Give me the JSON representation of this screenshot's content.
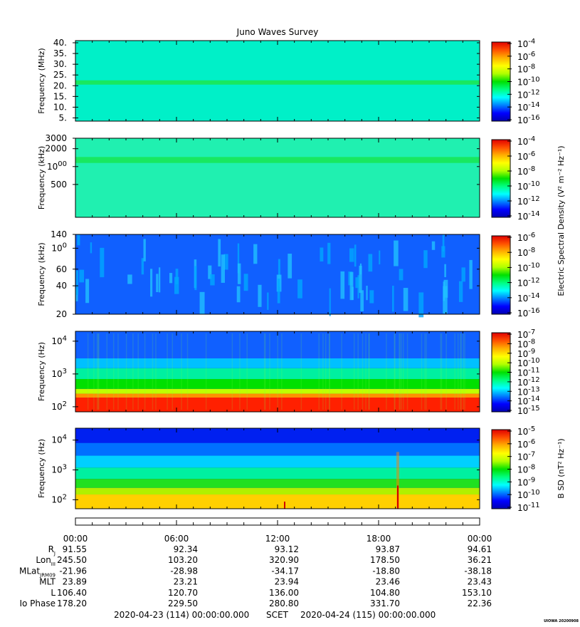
{
  "title": "Juno Waves Survey",
  "footer": {
    "start": "2020-04-23 (114) 00:00:00.000",
    "scet": "SCET",
    "end": "2020-04-24 (115) 00:00:00.000",
    "stamp": "UIOWA 20200908"
  },
  "time_ticks": [
    "00:00",
    "06:00",
    "12:00",
    "18:00",
    "00:00"
  ],
  "ephemeris": [
    {
      "label": "R",
      "sub": "J",
      "values": [
        "91.55",
        "92.34",
        "93.12",
        "93.87",
        "94.61"
      ]
    },
    {
      "label": "Lon",
      "sub": "III",
      "values": [
        "245.50",
        "103.20",
        "320.90",
        "178.50",
        "36.21"
      ]
    },
    {
      "label": "MLat",
      "sub": "JRM09",
      "values": [
        "-21.96",
        "-28.98",
        "-34.17",
        "-18.80",
        "-38.18"
      ]
    },
    {
      "label": "MLT",
      "sub": "",
      "values": [
        "23.89",
        "23.21",
        "23.94",
        "23.46",
        "23.43"
      ]
    },
    {
      "label": "L",
      "sub": "",
      "values": [
        "106.40",
        "120.70",
        "136.00",
        "104.80",
        "153.10"
      ]
    },
    {
      "label": "Io Phase",
      "sub": "",
      "values": [
        "178.20",
        "229.50",
        "280.80",
        "331.70",
        "22.36"
      ]
    }
  ],
  "shared_colorbar_label": "Electric Spectral Density (V² m⁻² Hz⁻¹)",
  "colormap": [
    "#0000b0",
    "#0000ff",
    "#0080ff",
    "#00ffff",
    "#00ff80",
    "#00e000",
    "#b0ff00",
    "#ffff00",
    "#ffb000",
    "#ff5000",
    "#e00000"
  ],
  "chart_data": [
    {
      "type": "heatmap",
      "ylabel": "Frequency (MHz)",
      "scale": "linear",
      "ylim": [
        3.5,
        41
      ],
      "yticks": [
        {
          "v": 5,
          "t": "5."
        },
        {
          "v": 10,
          "t": "10."
        },
        {
          "v": 15,
          "t": "15."
        },
        {
          "v": 20,
          "t": "20."
        },
        {
          "v": 25,
          "t": "25."
        },
        {
          "v": 30,
          "t": "30."
        },
        {
          "v": 35,
          "t": "35."
        },
        {
          "v": 40,
          "t": "40."
        }
      ],
      "colorbar": {
        "ticks": [
          "10-4",
          "10-6",
          "10-8",
          "10-10",
          "10-12",
          "10-14",
          "10-16"
        ],
        "label": ""
      },
      "base": "#00f0c8",
      "bands": [
        {
          "from": 20.5,
          "to": 22.5,
          "color": "#18e860"
        }
      ]
    },
    {
      "type": "heatmap",
      "ylabel": "Frequency (kHz)",
      "scale": "log",
      "ylim": [
        140,
        3000
      ],
      "yticks": [
        {
          "v": 3000,
          "t": "3000"
        },
        {
          "v": 2000,
          "t": "2000"
        },
        {
          "v": 1000,
          "t": "1000"
        },
        {
          "v": 500,
          "t": "500"
        }
      ],
      "colorbar": {
        "ticks": [
          "10-4",
          "10-6",
          "10-8",
          "10-10",
          "10-12",
          "10-14"
        ],
        "label": ""
      },
      "base": "#20f0b0",
      "bands": [
        {
          "from": 1150,
          "to": 1450,
          "color": "#18e860"
        }
      ]
    },
    {
      "type": "heatmap",
      "ylabel": "Frequency (kHz)",
      "scale": "log",
      "ylim": [
        20,
        140
      ],
      "yticks": [
        {
          "v": 140,
          "t": "140"
        },
        {
          "v": 100,
          "t": "100"
        },
        {
          "v": 60,
          "t": "60"
        },
        {
          "v": 40,
          "t": "40"
        },
        {
          "v": 20,
          "t": "20"
        }
      ],
      "colorbar": {
        "ticks": [
          "10-6",
          "10-8",
          "10-10",
          "10-12",
          "10-14",
          "10-16"
        ],
        "label": ""
      },
      "base": "#1060ff",
      "bands": []
    },
    {
      "type": "heatmap",
      "ylabel": "Frequency (Hz)",
      "scale": "log",
      "ylim": [
        70,
        20000
      ],
      "yticks": [
        {
          "v": 10000,
          "t": "10^4"
        },
        {
          "v": 1000,
          "t": "10^3"
        },
        {
          "v": 100,
          "t": "10^2"
        }
      ],
      "colorbar": {
        "ticks": [
          "10-7",
          "10-8",
          "10-9",
          "10-10",
          "10-11",
          "10-12",
          "10-13",
          "10-14",
          "10-15"
        ],
        "label": ""
      },
      "base": "#0000ff",
      "bands": [
        {
          "from": 3000,
          "to": 20000,
          "color": "#1060ff"
        },
        {
          "from": 1500,
          "to": 3000,
          "color": "#00c0ff"
        },
        {
          "from": 700,
          "to": 1500,
          "color": "#00f0a0"
        },
        {
          "from": 350,
          "to": 700,
          "color": "#00e000"
        },
        {
          "from": 250,
          "to": 350,
          "color": "#c0ff00"
        },
        {
          "from": 190,
          "to": 250,
          "color": "#ff9000"
        },
        {
          "from": 70,
          "to": 190,
          "color": "#ff2000"
        }
      ]
    },
    {
      "type": "heatmap",
      "ylabel": "Frequency (Hz)",
      "scale": "log",
      "ylim": [
        50,
        25000
      ],
      "yticks": [
        {
          "v": 10000,
          "t": "10^4"
        },
        {
          "v": 1000,
          "t": "10^3"
        },
        {
          "v": 100,
          "t": "10^2"
        }
      ],
      "colorbar": {
        "ticks": [
          "10-5",
          "10-6",
          "10-7",
          "10-8",
          "10-9",
          "10-10",
          "10-11"
        ],
        "label": "B SD (nT² Hz⁻¹)"
      },
      "base": "#0010e0",
      "bands": [
        {
          "from": 8000,
          "to": 25000,
          "color": "#0020f0"
        },
        {
          "from": 3000,
          "to": 8000,
          "color": "#0070ff"
        },
        {
          "from": 1200,
          "to": 3000,
          "color": "#00d0ff"
        },
        {
          "from": 500,
          "to": 1200,
          "color": "#00f0a0"
        },
        {
          "from": 250,
          "to": 500,
          "color": "#20e020"
        },
        {
          "from": 150,
          "to": 250,
          "color": "#b0f000"
        },
        {
          "from": 50,
          "to": 150,
          "color": "#ffd000"
        }
      ]
    }
  ]
}
